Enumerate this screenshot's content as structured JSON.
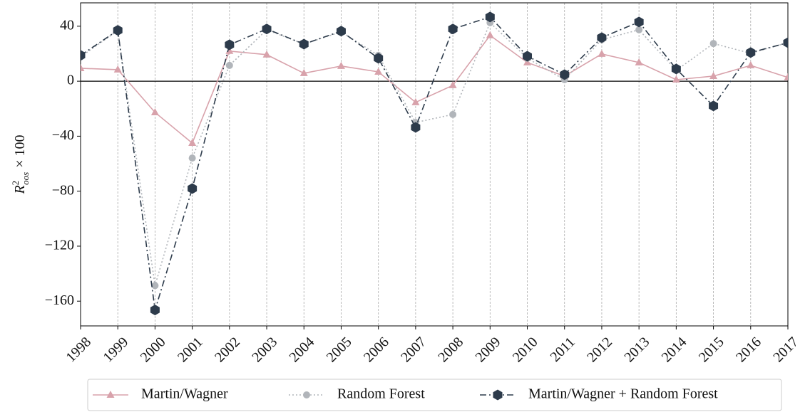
{
  "chart_data": {
    "type": "line",
    "ylabel": {
      "base": "R",
      "sup": "2",
      "sub": "oos",
      "tail": "× 100"
    },
    "categories": [
      "1998",
      "1999",
      "2000",
      "2001",
      "2002",
      "2003",
      "2004",
      "2005",
      "2006",
      "2007",
      "2008",
      "2009",
      "2010",
      "2011",
      "2012",
      "2013",
      "2014",
      "2015",
      "2016",
      "2017"
    ],
    "series": [
      {
        "name": "Martin/Wagner",
        "color": "#d8a2ab",
        "marker": "triangle",
        "linestyle": "solid",
        "values": [
          9.4,
          8.4,
          -22.7,
          -45,
          21.9,
          19.3,
          5.8,
          11,
          6.8,
          -15.4,
          -3,
          33.3,
          13.6,
          3.7,
          19.8,
          13.6,
          1.1,
          3.7,
          11.5,
          2.7
        ]
      },
      {
        "name": "Random Forest",
        "color": "#b1b5ba",
        "marker": "circle",
        "linestyle": "dotted",
        "values": [
          17.7,
          36.9,
          -148.7,
          -55.9,
          11.5,
          37.4,
          27,
          35.9,
          18.8,
          -30,
          -24.2,
          42.6,
          16.7,
          1.1,
          30.2,
          37.4,
          7.9,
          27.4,
          20.3,
          28.1
        ]
      },
      {
        "name": "Martin/Wagner + Random Forest",
        "color": "#2d3b4b",
        "marker": "hexagon",
        "linestyle": "dashdot",
        "values": [
          18.8,
          37,
          -166.4,
          -78.1,
          26.5,
          38,
          27,
          36.4,
          16.7,
          -33.6,
          38,
          46.7,
          18.2,
          4.8,
          31.7,
          43.1,
          8.9,
          -18,
          20.8,
          28
        ]
      }
    ],
    "ylim": [
      -178,
      57
    ],
    "yticks": [
      {
        "value": -160,
        "label": "−160"
      },
      {
        "value": -120,
        "label": "−120"
      },
      {
        "value": -80,
        "label": "−80"
      },
      {
        "value": -40,
        "label": "−40"
      },
      0,
      40
    ],
    "grid": "x",
    "zero_line": true,
    "legend": "bottom"
  }
}
